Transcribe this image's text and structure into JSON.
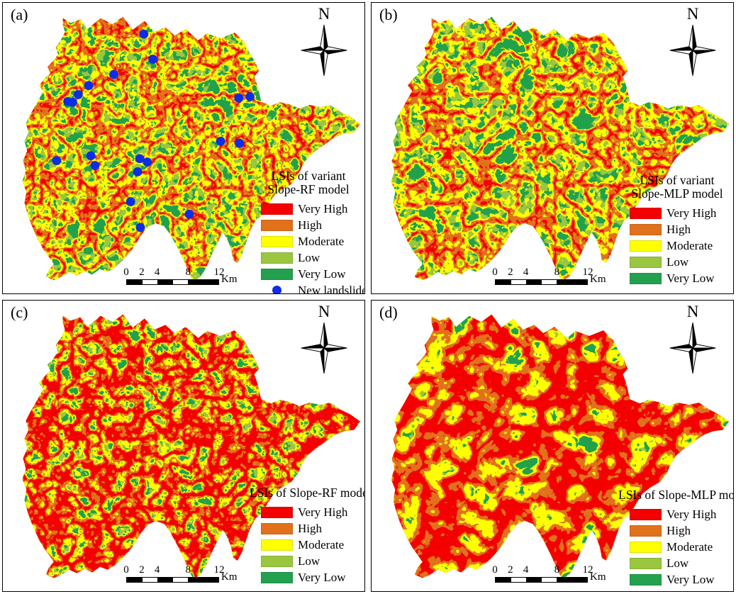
{
  "figure": {
    "type": "landslide-susceptibility-map-grid",
    "panels": [
      {
        "label": "(a)",
        "north_label": "N",
        "legend_title_lines": [
          "LSIs of variant",
          "Slope-RF model"
        ],
        "legend_items": [
          {
            "label": "Very High",
            "color": "#F40000",
            "shape": "swatch"
          },
          {
            "label": "High",
            "color": "#E2711C",
            "shape": "swatch"
          },
          {
            "label": "Moderate",
            "color": "#FFFF00",
            "shape": "swatch"
          },
          {
            "label": "Low",
            "color": "#9BC63F",
            "shape": "swatch"
          },
          {
            "label": "Very Low",
            "color": "#23A14E",
            "shape": "swatch"
          },
          {
            "label": "New landslides",
            "color": "#0D2EE2",
            "shape": "dot"
          }
        ],
        "scalebar": {
          "tick_labels": [
            "0",
            "2",
            "4",
            "8",
            "12"
          ],
          "tick_km": [
            0,
            2,
            4,
            8,
            12
          ],
          "unit": "Km"
        },
        "landslide_points": [
          [
            202,
            45
          ],
          [
            215,
            81
          ],
          [
            159,
            103
          ],
          [
            123,
            119
          ],
          [
            108,
            132
          ],
          [
            93,
            142
          ],
          [
            100,
            143
          ],
          [
            338,
            137
          ],
          [
            354,
            135
          ],
          [
            312,
            199
          ],
          [
            339,
            202
          ],
          [
            77,
            227
          ],
          [
            126,
            220
          ],
          [
            132,
            234
          ],
          [
            196,
            224
          ],
          [
            207,
            229
          ],
          [
            193,
            243
          ],
          [
            183,
            286
          ],
          [
            267,
            304
          ],
          [
            197,
            323
          ]
        ]
      },
      {
        "label": "(b)",
        "north_label": "N",
        "legend_title_lines": [
          "LSIs of variant",
          "Slope-MLP model"
        ],
        "legend_items": [
          {
            "label": "Very High",
            "color": "#F40000",
            "shape": "swatch"
          },
          {
            "label": "High",
            "color": "#E2711C",
            "shape": "swatch"
          },
          {
            "label": "Moderate",
            "color": "#FFFF00",
            "shape": "swatch"
          },
          {
            "label": "Low",
            "color": "#9BC63F",
            "shape": "swatch"
          },
          {
            "label": "Very Low",
            "color": "#23A14E",
            "shape": "swatch"
          }
        ],
        "scalebar": {
          "tick_labels": [
            "0",
            "2",
            "4",
            "8",
            "12"
          ],
          "tick_km": [
            0,
            2,
            4,
            8,
            12
          ],
          "unit": "Km"
        }
      },
      {
        "label": "(c)",
        "north_label": "N",
        "legend_title_lines": [
          "LSIs of Slope-RF model"
        ],
        "legend_items": [
          {
            "label": "Very High",
            "color": "#F40000",
            "shape": "swatch"
          },
          {
            "label": "High",
            "color": "#E2711C",
            "shape": "swatch"
          },
          {
            "label": "Moderate",
            "color": "#FFFF00",
            "shape": "swatch"
          },
          {
            "label": "Low",
            "color": "#9BC63F",
            "shape": "swatch"
          },
          {
            "label": "Very Low",
            "color": "#23A14E",
            "shape": "swatch"
          }
        ],
        "scalebar": {
          "tick_labels": [
            "0",
            "2",
            "4",
            "8",
            "12"
          ],
          "tick_km": [
            0,
            2,
            4,
            8,
            12
          ],
          "unit": "Km"
        }
      },
      {
        "label": "(d)",
        "north_label": "N",
        "legend_title_lines": [
          "LSIs of Slope-MLP model"
        ],
        "legend_items": [
          {
            "label": "Very High",
            "color": "#F40000",
            "shape": "swatch"
          },
          {
            "label": "High",
            "color": "#E2711C",
            "shape": "swatch"
          },
          {
            "label": "Moderate",
            "color": "#FFFF00",
            "shape": "swatch"
          },
          {
            "label": "Low",
            "color": "#9BC63F",
            "shape": "swatch"
          },
          {
            "label": "Very Low",
            "color": "#23A14E",
            "shape": "swatch"
          }
        ],
        "scalebar": {
          "tick_labels": [
            "0",
            "2",
            "4",
            "8",
            "12"
          ],
          "tick_km": [
            0,
            2,
            4,
            8,
            12
          ],
          "unit": "Km"
        }
      }
    ]
  },
  "colors": {
    "very_high": "#F40000",
    "high": "#E2711C",
    "moderate": "#FFFF00",
    "low": "#9BC63F",
    "very_low": "#23A14E",
    "landslide_dot": "#0D2EE2",
    "background": "#FFFFFF",
    "panel_border": "#000000"
  }
}
